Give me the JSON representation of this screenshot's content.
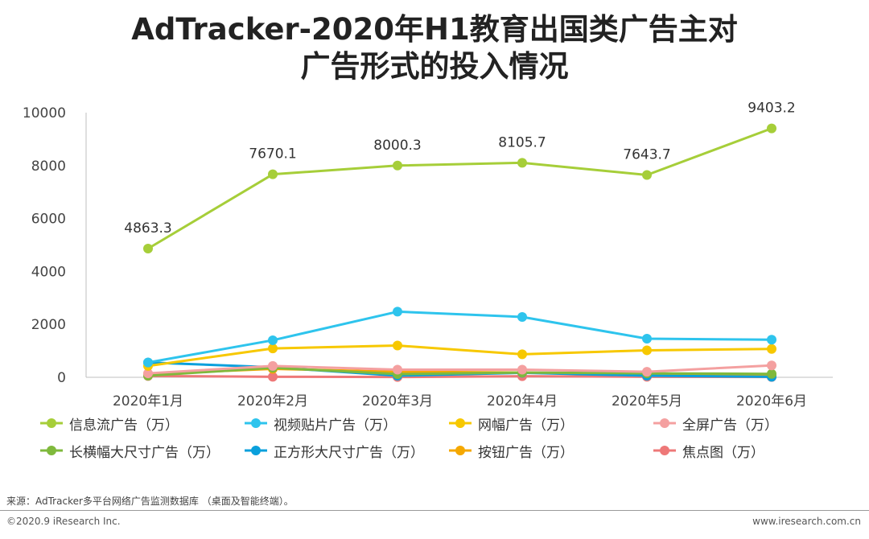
{
  "title_line1": "AdTracker-2020年H1教育出国类广告主对",
  "title_line2": "广告形式的投入情况",
  "chart_data": {
    "type": "line",
    "title": "AdTracker-2020年H1教育出国类广告主对广告形式的投入情况",
    "categories": [
      "2020年1月",
      "2020年2月",
      "2020年3月",
      "2020年4月",
      "2020年5月",
      "2020年6月"
    ],
    "ylim": [
      0,
      10000
    ],
    "yticks": [
      0,
      2000,
      4000,
      6000,
      8000,
      10000
    ],
    "ytick_labels": [
      "0",
      "2000",
      "4000",
      "6000",
      "8000",
      "10000"
    ],
    "grid": false,
    "legend_position": "bottom",
    "series": [
      {
        "name": "信息流广告（万）",
        "color": "#a6ce39",
        "values": [
          4863.3,
          7670.1,
          8000.3,
          8105.7,
          7643.7,
          9403.2
        ],
        "labels": [
          "4863.3",
          "7670.1",
          "8000.3",
          "8105.7",
          "7643.7",
          "9403.2"
        ]
      },
      {
        "name": "视频贴片广告（万）",
        "color": "#2ec4ed",
        "values": [
          560,
          1400,
          2480,
          2280,
          1460,
          1420
        ]
      },
      {
        "name": "网幅广告（万）",
        "color": "#f7c800",
        "values": [
          430,
          1090,
          1200,
          870,
          1020,
          1070
        ]
      },
      {
        "name": "全屏广告（万）",
        "color": "#f4a0a0",
        "values": [
          150,
          430,
          290,
          290,
          210,
          450
        ]
      },
      {
        "name": "长横幅大尺寸广告（万）",
        "color": "#7fb93c",
        "values": [
          60,
          360,
          120,
          180,
          150,
          130
        ]
      },
      {
        "name": "正方形大尺寸广告（万）",
        "color": "#0aa0dc",
        "values": [
          560,
          380,
          60,
          170,
          60,
          20
        ]
      },
      {
        "name": "按钮广告（万）",
        "color": "#f5a800",
        "values": [
          120,
          320,
          210,
          180,
          90,
          60
        ]
      },
      {
        "name": "焦点图（万）",
        "color": "#ee7878",
        "values": [
          50,
          20,
          10,
          40,
          20,
          10
        ]
      }
    ]
  },
  "source_text": "来源：AdTracker多平台网络广告监测数据库 （桌面及智能终端）。",
  "footer_left": "©2020.9 iResearch Inc.",
  "footer_right": "www.iresearch.com.cn"
}
